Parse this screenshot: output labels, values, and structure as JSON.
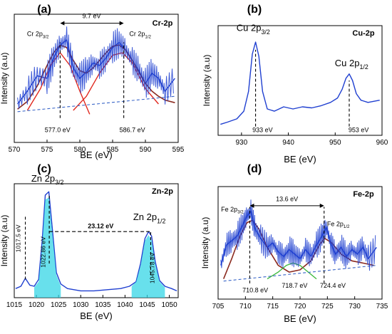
{
  "colors": {
    "spectrum": "#1f3fd0",
    "envelope": "#8b2a1f",
    "fit_red": "#e0281e",
    "fit_green": "#38b838",
    "baseline": "#3a66c8",
    "fill_cyan": "#35d6e6",
    "axis": "#000000"
  },
  "chart_data": [
    {
      "type": "line",
      "panel_letter": "(a)",
      "element_label": "Cr-2p",
      "xlabel": "BE (eV)",
      "ylabel": "Intensity (a.u)",
      "xlim": [
        570,
        595
      ],
      "x_ticks": [
        570,
        575,
        580,
        585,
        590,
        595
      ],
      "ylim": [
        0,
        1
      ],
      "series": [
        {
          "role": "spectrum",
          "x": [
            570.5,
            572,
            573.5,
            575,
            576,
            577,
            578,
            579,
            580,
            581,
            582,
            583,
            584,
            585,
            586,
            587,
            588,
            589,
            590,
            591,
            592,
            593,
            594.5
          ],
          "y": [
            0.3,
            0.4,
            0.52,
            0.5,
            0.66,
            0.76,
            0.8,
            0.58,
            0.5,
            0.55,
            0.62,
            0.6,
            0.66,
            0.74,
            0.78,
            0.72,
            0.64,
            0.56,
            0.46,
            0.54,
            0.5,
            0.4,
            0.5
          ]
        },
        {
          "role": "envelope",
          "x": [
            570.5,
            572,
            573.5,
            575,
            576,
            577,
            578,
            579,
            580,
            581,
            582,
            583,
            584,
            585,
            586,
            587,
            588,
            589,
            590,
            591,
            592,
            593,
            594.5
          ],
          "y": [
            0.26,
            0.32,
            0.44,
            0.6,
            0.7,
            0.76,
            0.74,
            0.64,
            0.56,
            0.54,
            0.58,
            0.64,
            0.7,
            0.75,
            0.76,
            0.72,
            0.64,
            0.55,
            0.46,
            0.4,
            0.36,
            0.33,
            0.31
          ]
        },
        {
          "role": "fit_red",
          "x": [
            572,
            574,
            575.5,
            577,
            578.5,
            580,
            581.5
          ],
          "y": [
            0.25,
            0.42,
            0.6,
            0.7,
            0.6,
            0.4,
            0.22
          ]
        },
        {
          "role": "fit_red",
          "x": [
            579,
            581,
            583,
            585,
            586.5,
            588,
            590,
            592
          ],
          "y": [
            0.25,
            0.36,
            0.54,
            0.68,
            0.7,
            0.62,
            0.42,
            0.3
          ]
        },
        {
          "role": "baseline",
          "x": [
            570.5,
            594.5
          ],
          "y": [
            0.24,
            0.36
          ]
        }
      ],
      "annotations": [
        {
          "type": "vline",
          "x": 577.0,
          "y": [
            0.19,
            0.78
          ]
        },
        {
          "type": "vline",
          "x": 586.7,
          "y": [
            0.19,
            0.78
          ]
        },
        {
          "type": "double_arrow",
          "x": [
            577.0,
            586.7
          ],
          "y": 0.93
        },
        {
          "type": "label",
          "text": "9.7 eV",
          "x": 581.8,
          "y": 0.97
        },
        {
          "type": "label",
          "text": "Cr 2p",
          "sub": "3/2",
          "x": 573.6,
          "y": 0.83
        },
        {
          "type": "label",
          "text": "Cr 2p",
          "sub": "1/2",
          "x": 589.2,
          "y": 0.83
        },
        {
          "type": "label",
          "text": "577.0 eV",
          "x": 576.6,
          "y": 0.08
        },
        {
          "type": "label",
          "text": "586.7 eV",
          "x": 588.0,
          "y": 0.08
        }
      ]
    },
    {
      "type": "line",
      "panel_letter": "(b)",
      "element_label": "Cu-2p",
      "xlabel": "BE (eV)",
      "ylabel": "Intensity (a.u)",
      "xlim": [
        925,
        960
      ],
      "x_ticks": [
        930,
        940,
        950,
        960
      ],
      "ylim": [
        0,
        1
      ],
      "series": [
        {
          "role": "spectrum",
          "x": [
            925.5,
            927,
            929,
            930.5,
            931.5,
            932.3,
            933,
            933.7,
            934.5,
            935.5,
            937,
            939,
            941,
            943,
            945,
            947,
            949,
            950.5,
            951.5,
            952.3,
            953,
            953.7,
            954.5,
            955.5,
            957,
            959.5
          ],
          "y": [
            0.1,
            0.12,
            0.15,
            0.22,
            0.4,
            0.74,
            0.85,
            0.72,
            0.4,
            0.24,
            0.22,
            0.26,
            0.24,
            0.26,
            0.25,
            0.27,
            0.3,
            0.34,
            0.42,
            0.52,
            0.56,
            0.5,
            0.38,
            0.32,
            0.3,
            0.32
          ]
        }
      ],
      "annotations": [
        {
          "type": "vline",
          "x": 933,
          "y": [
            0.08,
            0.78
          ]
        },
        {
          "type": "vline",
          "x": 953,
          "y": [
            0.08,
            0.5
          ]
        },
        {
          "type": "label",
          "text": "933 eV",
          "x": 934.5,
          "y": 0.03
        },
        {
          "type": "label",
          "text": "953 eV",
          "x": 955,
          "y": 0.03
        },
        {
          "type": "label",
          "text": "Cu 2p",
          "sub": "3/2",
          "x": 932.5,
          "y": 0.95
        },
        {
          "type": "label",
          "text": "Cu 2p",
          "sub": "1/2",
          "x": 953.5,
          "y": 0.63
        }
      ]
    },
    {
      "type": "line",
      "panel_letter": "(c)",
      "element_label": "Zn-2p",
      "xlabel": "BE (eV)",
      "ylabel": "Intensity (a.u)",
      "xlim": [
        1015,
        1052
      ],
      "x_ticks": [
        1015,
        1020,
        1025,
        1030,
        1035,
        1040,
        1045,
        1050
      ],
      "ylim": [
        0,
        1
      ],
      "series": [
        {
          "role": "spectrum",
          "x": [
            1015.3,
            1016.5,
            1017.5,
            1018.5,
            1019.5,
            1020.5,
            1021.3,
            1022,
            1022.8,
            1023.6,
            1024.5,
            1025.5,
            1027,
            1030,
            1033,
            1036,
            1039,
            1041,
            1042.5,
            1043.5,
            1044.5,
            1045.3,
            1046,
            1046.8,
            1047.8,
            1049,
            1050.5,
            1051.7
          ],
          "y": [
            0.08,
            0.1,
            0.17,
            0.11,
            0.1,
            0.16,
            0.5,
            0.9,
            0.93,
            0.6,
            0.22,
            0.12,
            0.08,
            0.06,
            0.06,
            0.07,
            0.08,
            0.1,
            0.14,
            0.3,
            0.52,
            0.58,
            0.54,
            0.32,
            0.15,
            0.1,
            0.08,
            0.06
          ]
        },
        {
          "role": "fill_cyan",
          "x": [
            1019.5,
            1020.5,
            1021.3,
            1022,
            1022.8,
            1023.6,
            1024.5,
            1025.5
          ],
          "y": [
            0.09,
            0.14,
            0.46,
            0.86,
            0.88,
            0.56,
            0.2,
            0.1
          ]
        },
        {
          "role": "fill_cyan",
          "x": [
            1041.5,
            1042.5,
            1043.5,
            1044.5,
            1045.3,
            1046,
            1046.8,
            1047.8,
            1049
          ],
          "y": [
            0.1,
            0.14,
            0.28,
            0.5,
            0.55,
            0.5,
            0.3,
            0.14,
            0.09
          ]
        }
      ],
      "annotations": [
        {
          "type": "vline",
          "x": 1017.5,
          "y": [
            0.16,
            0.72
          ]
        },
        {
          "type": "vline",
          "x": 1022.9,
          "y": [
            0.3,
            0.9
          ]
        },
        {
          "type": "vline",
          "x": 1045.8,
          "y": [
            0.2,
            0.58
          ]
        },
        {
          "type": "hline_dashed",
          "x": [
            1022.9,
            1045.8
          ],
          "y": 0.58
        },
        {
          "type": "label",
          "text": "23.12 eV",
          "x": 1034.5,
          "y": 0.61
        },
        {
          "type": "label",
          "text": "1017.5 eV",
          "x": 1016.4,
          "y": 0.52,
          "rotate": -90
        },
        {
          "type": "label",
          "text": "1022.86 eV",
          "x": 1022.0,
          "y": 0.4,
          "rotate": -90
        },
        {
          "type": "label",
          "text": "1045.78 eV",
          "x": 1046.6,
          "y": 0.26,
          "rotate": -90
        },
        {
          "type": "label",
          "text": "Zn 2p",
          "sub": "3/2",
          "x": 1022.5,
          "y": 1.02
        },
        {
          "type": "label",
          "text": "Zn 2p",
          "sub": "1/2",
          "x": 1045.5,
          "y": 0.68
        }
      ]
    },
    {
      "type": "line",
      "panel_letter": "(d)",
      "element_label": "Fe-2p",
      "xlabel": "BE (eV)",
      "ylabel": "Intensity (a.u)",
      "xlim": [
        705,
        735
      ],
      "x_ticks": [
        705,
        710,
        715,
        720,
        725,
        730,
        735
      ],
      "ylim": [
        0,
        1
      ],
      "series": [
        {
          "role": "spectrum",
          "x": [
            705.5,
            706.5,
            707.5,
            708.5,
            709.5,
            710.3,
            711,
            711.8,
            712.8,
            714,
            715,
            716,
            717,
            718,
            719,
            720,
            721,
            722,
            723,
            724,
            724.8,
            725.6,
            726.5,
            727.5,
            728.5,
            729.5,
            730.5,
            731.5,
            732.5,
            734
          ],
          "y": [
            0.3,
            0.48,
            0.52,
            0.56,
            0.66,
            0.74,
            0.78,
            0.62,
            0.54,
            0.46,
            0.5,
            0.42,
            0.38,
            0.44,
            0.4,
            0.36,
            0.44,
            0.38,
            0.48,
            0.56,
            0.64,
            0.5,
            0.4,
            0.46,
            0.38,
            0.44,
            0.4,
            0.46,
            0.36,
            0.46
          ]
        },
        {
          "role": "envelope",
          "x": [
            706,
            707.5,
            709,
            710.3,
            711.3,
            712.5,
            714,
            716,
            718,
            720,
            722,
            723.5,
            724.5,
            725.8,
            727.5,
            729.5,
            731.5,
            733.5
          ],
          "y": [
            0.18,
            0.36,
            0.56,
            0.68,
            0.7,
            0.62,
            0.46,
            0.3,
            0.24,
            0.26,
            0.34,
            0.48,
            0.54,
            0.5,
            0.4,
            0.34,
            0.32,
            0.3
          ]
        },
        {
          "role": "fit_green",
          "x": [
            714,
            716,
            717.5,
            718.7,
            720,
            721.5,
            723
          ],
          "y": [
            0.18,
            0.24,
            0.3,
            0.32,
            0.3,
            0.24,
            0.18
          ]
        },
        {
          "role": "baseline",
          "x": [
            706,
            734
          ],
          "y": [
            0.16,
            0.3
          ]
        }
      ],
      "annotations": [
        {
          "type": "vline",
          "x": 710.8,
          "y": [
            0.14,
            0.82
          ]
        },
        {
          "type": "vline",
          "x": 724.4,
          "y": [
            0.14,
            0.82
          ]
        },
        {
          "type": "double_arrow",
          "x": [
            710.8,
            724.4
          ],
          "y": 0.83
        },
        {
          "type": "label",
          "text": "13.6 eV",
          "x": 717.6,
          "y": 0.87
        },
        {
          "type": "label",
          "text": "Fe 2p",
          "sub": "3/2",
          "x": 707.6,
          "y": 0.78
        },
        {
          "type": "label",
          "text": "Fe 2p",
          "sub": "1/2",
          "x": 727.0,
          "y": 0.65
        },
        {
          "type": "label",
          "text": "710.8 eV",
          "x": 711.8,
          "y": 0.06
        },
        {
          "type": "label",
          "text": "718.7 eV",
          "x": 719.0,
          "y": 0.1
        },
        {
          "type": "label",
          "text": "724.4 eV",
          "x": 726.0,
          "y": 0.1
        }
      ]
    }
  ]
}
